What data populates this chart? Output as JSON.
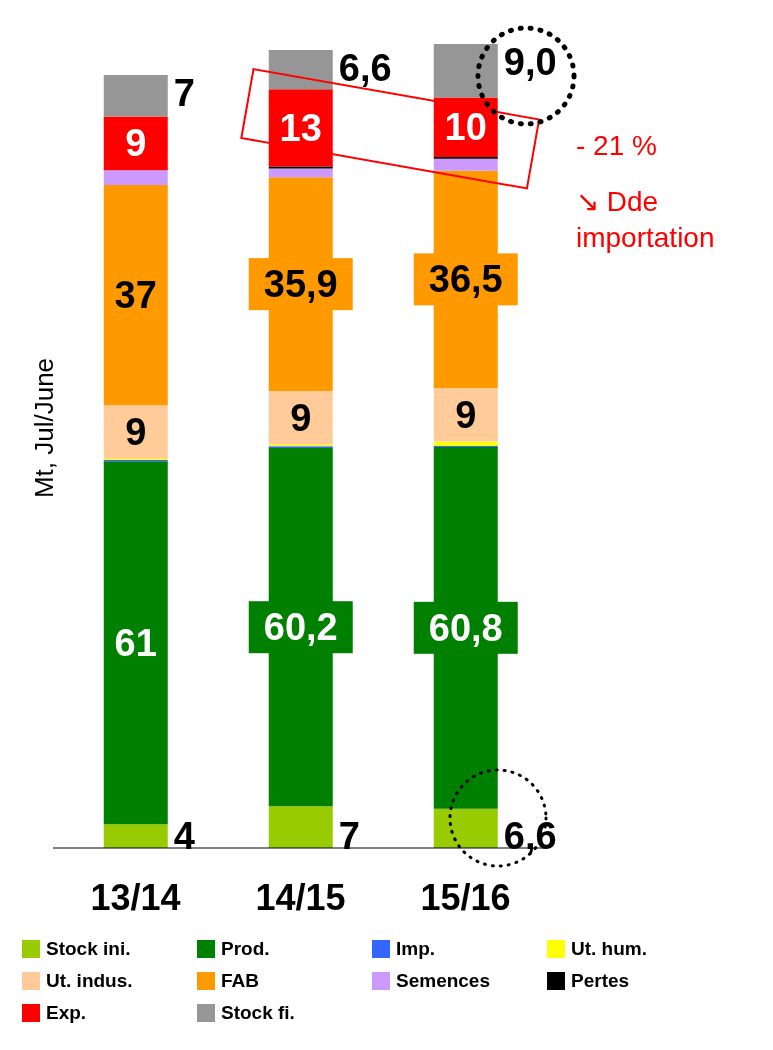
{
  "chart_data": {
    "type": "bar",
    "stacked": true,
    "ylabel": "Mt, Jul/June",
    "categories": [
      "13/14",
      "14/15",
      "15/16"
    ],
    "legend": "bottom",
    "annotations": [
      "- 21 %",
      "↘ Dde importation"
    ],
    "series": [
      {
        "name": "Stock ini.",
        "color": "#99cc00",
        "values": [
          4,
          7,
          6.6
        ],
        "value_labels": [
          "4",
          "7",
          "6,6"
        ]
      },
      {
        "name": "Prod.",
        "color": "#008000",
        "values": [
          61,
          60.2,
          60.8
        ],
        "value_labels": [
          "61",
          "60,2",
          "60,8"
        ]
      },
      {
        "name": "Imp.",
        "color": "#3366ff",
        "values": [
          0.2,
          0.3,
          0.2
        ],
        "value_labels": [
          null,
          null,
          null
        ]
      },
      {
        "name": "Ut. hum.",
        "color": "#ffff00",
        "values": [
          0.2,
          0.3,
          0.7
        ],
        "value_labels": [
          null,
          null,
          null
        ]
      },
      {
        "name": "Ut. indus.",
        "color": "#ffcc99",
        "values": [
          9,
          9,
          9
        ],
        "value_labels": [
          "9",
          "9",
          "9"
        ]
      },
      {
        "name": "FAB",
        "color": "#ff9900",
        "values": [
          37,
          35.9,
          36.5
        ],
        "value_labels": [
          "37",
          "35,9",
          "36,5"
        ]
      },
      {
        "name": "Semences",
        "color": "#cc99ff",
        "values": [
          2.5,
          1.5,
          2
        ],
        "value_labels": [
          null,
          null,
          null
        ]
      },
      {
        "name": "Pertes",
        "color": "#000000",
        "values": [
          null,
          0.3,
          0.3
        ],
        "value_labels": [
          null,
          null,
          null
        ]
      },
      {
        "name": "Exp.",
        "color": "#ff0000",
        "values": [
          9,
          13,
          10
        ],
        "value_labels": [
          "9",
          "13",
          "10"
        ]
      },
      {
        "name": "Stock fi.",
        "color": "#969696",
        "values": [
          7,
          6.6,
          9.0
        ],
        "value_labels": [
          "7",
          "6,6",
          "9,0"
        ]
      }
    ]
  }
}
